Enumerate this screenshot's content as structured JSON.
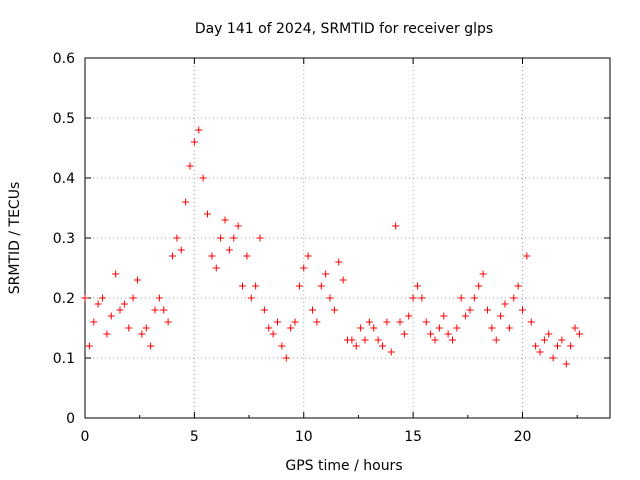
{
  "chart_data": {
    "type": "scatter",
    "title": "Day 141 of 2024, SRMTID for receiver glps",
    "xlabel": "GPS time / hours",
    "ylabel": "SRMTID / TECUs",
    "xlim": [
      0,
      24
    ],
    "ylim": [
      0,
      0.6
    ],
    "xticks": [
      0,
      5,
      10,
      15,
      20
    ],
    "xtick_labels": [
      "0",
      "5",
      "10",
      "15",
      "20"
    ],
    "yticks": [
      0,
      0.1,
      0.2,
      0.3,
      0.4,
      0.5,
      0.6
    ],
    "ytick_labels": [
      "0",
      "0.1",
      "0.2",
      "0.3",
      "0.4",
      "0.5",
      "0.6"
    ],
    "grid": true,
    "marker": "plus",
    "color": "#ff0000",
    "series": [
      {
        "name": "SRMTID",
        "x": [
          0.0,
          0.2,
          0.4,
          0.6,
          0.8,
          1.0,
          1.2,
          1.4,
          1.6,
          1.8,
          2.0,
          2.2,
          2.4,
          2.6,
          2.8,
          3.0,
          3.2,
          3.4,
          3.6,
          3.8,
          4.0,
          4.2,
          4.4,
          4.6,
          4.8,
          5.0,
          5.2,
          5.4,
          5.6,
          5.8,
          6.0,
          6.2,
          6.4,
          6.6,
          6.8,
          7.0,
          7.2,
          7.4,
          7.6,
          7.8,
          8.0,
          8.2,
          8.4,
          8.6,
          8.8,
          9.0,
          9.2,
          9.4,
          9.6,
          9.8,
          10.0,
          10.2,
          10.4,
          10.6,
          10.8,
          11.0,
          11.2,
          11.4,
          11.6,
          11.8,
          12.0,
          12.2,
          12.4,
          12.6,
          12.8,
          13.0,
          13.2,
          13.4,
          13.6,
          13.8,
          14.0,
          14.2,
          14.4,
          14.6,
          14.8,
          15.0,
          15.2,
          15.4,
          15.6,
          15.8,
          16.0,
          16.2,
          16.4,
          16.6,
          16.8,
          17.0,
          17.2,
          17.4,
          17.6,
          17.8,
          18.0,
          18.2,
          18.4,
          18.6,
          18.8,
          19.0,
          19.2,
          19.4,
          19.6,
          19.8,
          20.0,
          20.2,
          20.4,
          20.6,
          20.8,
          21.0,
          21.2,
          21.4,
          21.6,
          21.8,
          22.0,
          22.2,
          22.4,
          22.6
        ],
        "y": [
          0.2,
          0.12,
          0.16,
          0.19,
          0.2,
          0.14,
          0.17,
          0.24,
          0.18,
          0.19,
          0.15,
          0.2,
          0.23,
          0.14,
          0.15,
          0.12,
          0.18,
          0.2,
          0.18,
          0.16,
          0.27,
          0.3,
          0.28,
          0.36,
          0.42,
          0.46,
          0.48,
          0.4,
          0.34,
          0.27,
          0.25,
          0.3,
          0.33,
          0.28,
          0.3,
          0.32,
          0.22,
          0.27,
          0.2,
          0.22,
          0.3,
          0.18,
          0.15,
          0.14,
          0.16,
          0.12,
          0.1,
          0.15,
          0.16,
          0.22,
          0.25,
          0.27,
          0.18,
          0.16,
          0.22,
          0.24,
          0.2,
          0.18,
          0.26,
          0.23,
          0.13,
          0.13,
          0.12,
          0.15,
          0.13,
          0.16,
          0.15,
          0.13,
          0.12,
          0.16,
          0.11,
          0.32,
          0.16,
          0.14,
          0.17,
          0.2,
          0.22,
          0.2,
          0.16,
          0.14,
          0.13,
          0.15,
          0.17,
          0.14,
          0.13,
          0.15,
          0.2,
          0.17,
          0.18,
          0.2,
          0.22,
          0.24,
          0.18,
          0.15,
          0.13,
          0.17,
          0.19,
          0.15,
          0.2,
          0.22,
          0.18,
          0.27,
          0.16,
          0.12,
          0.11,
          0.13,
          0.14,
          0.1,
          0.12,
          0.13,
          0.09,
          0.12,
          0.15,
          0.14
        ]
      }
    ]
  }
}
